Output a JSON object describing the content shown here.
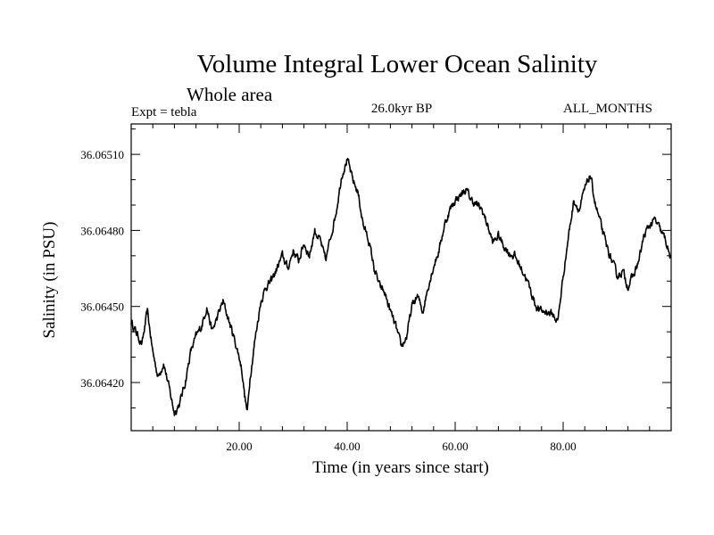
{
  "chart_data": {
    "type": "line",
    "title": "Volume Integral Lower Ocean Salinity",
    "subtitle": "Whole area",
    "experiment": "Expt = tebla",
    "period": "26.0kyr BP",
    "months": "ALL_MONTHS",
    "xlabel": "Time (in years since start)",
    "ylabel": "Salinity (in PSU)",
    "xlim": [
      0,
      100
    ],
    "ylim": [
      36.06401,
      36.06522
    ],
    "xticks": [
      20,
      40,
      60,
      80
    ],
    "xtick_labels": [
      "20.00",
      "40.00",
      "60.00",
      "80.00"
    ],
    "yticks": [
      36.0642,
      36.0645,
      36.0648,
      36.0651
    ],
    "ytick_labels": [
      "36.06420",
      "36.06450",
      "36.06480",
      "36.06510"
    ],
    "series": [
      {
        "name": "Salinity",
        "x": [
          0,
          2,
          3,
          4,
          5,
          6,
          7,
          8,
          9,
          10,
          11,
          12,
          13,
          14,
          15,
          16,
          17,
          18,
          19,
          20,
          20.5,
          21,
          21.5,
          22,
          23,
          24,
          25,
          26,
          27,
          28,
          29,
          30,
          31,
          32,
          33,
          34,
          35,
          36,
          37,
          38,
          39,
          40,
          41,
          42,
          43,
          44,
          45,
          46,
          47,
          48,
          49,
          50,
          51,
          52,
          53,
          54,
          55,
          56,
          57,
          58,
          59,
          60,
          61,
          62,
          63,
          64,
          65,
          66,
          67,
          68,
          69,
          70,
          71,
          72,
          73,
          74,
          75,
          76,
          77,
          78,
          79,
          80,
          81,
          82,
          83,
          84,
          85,
          86,
          87,
          88,
          89,
          90,
          91,
          92,
          93,
          94,
          95,
          96,
          97,
          98,
          99,
          100
        ],
        "values": [
          36.06444,
          36.06435,
          36.06448,
          36.06432,
          36.06422,
          36.06428,
          36.06418,
          36.06408,
          36.06412,
          36.0642,
          36.06432,
          36.06438,
          36.06442,
          36.0645,
          36.0644,
          36.06446,
          36.06452,
          36.06445,
          36.06438,
          36.0643,
          36.06425,
          36.06415,
          36.06408,
          36.06422,
          36.06438,
          36.06452,
          36.06458,
          36.0646,
          36.06465,
          36.0647,
          36.06465,
          36.06472,
          36.06468,
          36.06475,
          36.0647,
          36.0648,
          36.06476,
          36.06468,
          36.06478,
          36.06488,
          36.06502,
          36.06508,
          36.065,
          36.06495,
          36.06482,
          36.06476,
          36.06465,
          36.06458,
          36.06455,
          36.06448,
          36.06442,
          36.06434,
          36.06438,
          36.0645,
          36.06454,
          36.06448,
          36.06458,
          36.06466,
          36.06472,
          36.06482,
          36.06488,
          36.06492,
          36.06494,
          36.06496,
          36.06492,
          36.0649,
          36.06488,
          36.06482,
          36.06475,
          36.06478,
          36.06474,
          36.06471,
          36.0647,
          36.06466,
          36.06462,
          36.06456,
          36.0645,
          36.06448,
          36.06448,
          36.06447,
          36.06444,
          36.06462,
          36.06478,
          36.06492,
          36.06488,
          36.06496,
          36.06502,
          36.0649,
          36.06482,
          36.06474,
          36.06468,
          36.06462,
          36.06464,
          36.06458,
          36.06462,
          36.06468,
          36.06478,
          36.06482,
          36.06484,
          36.0648,
          36.06476,
          36.06468
        ]
      }
    ]
  }
}
